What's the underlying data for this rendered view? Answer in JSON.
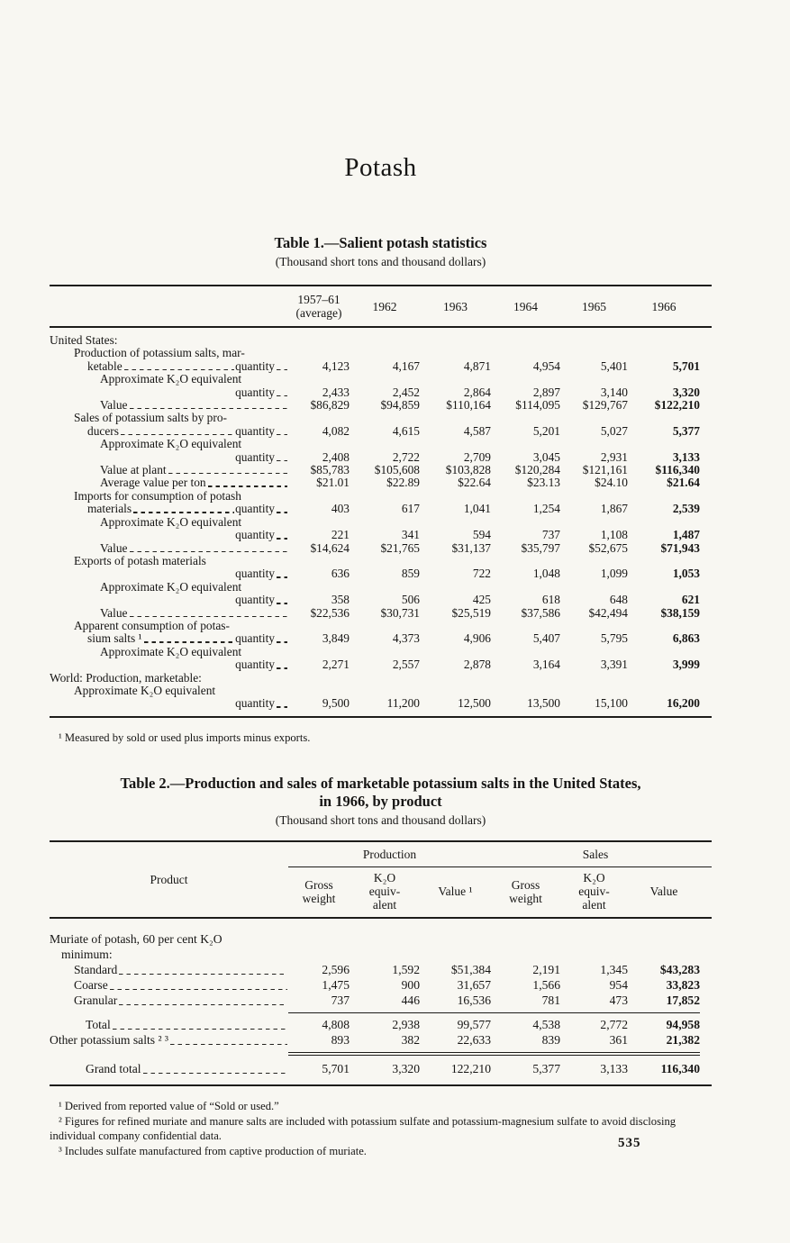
{
  "page": {
    "title": "Potash",
    "page_number": "535"
  },
  "table1": {
    "title": "Table 1.—Salient potash statistics",
    "subtitle": "(Thousand short tons and thousand dollars)",
    "col_headers": [
      "1957–61\n(average)",
      "1962",
      "1963",
      "1964",
      "1965",
      "1966"
    ],
    "rows": [
      {
        "indent": 0,
        "pre": "United States:"
      },
      {
        "indent": 1,
        "pre": "Production of potassium salts, mar-"
      },
      {
        "indent": 2,
        "pre": "ketable",
        "leader": true,
        "post": "quantity",
        "values": [
          "4,123",
          "4,167",
          "4,871",
          "4,954",
          "5,401",
          "5,701"
        ]
      },
      {
        "indent": 3,
        "pre": "Approximate K₂O equivalent"
      },
      {
        "indent": 0,
        "post": "quantity",
        "values": [
          "2,433",
          "2,452",
          "2,864",
          "2,897",
          "3,140",
          "3,320"
        ]
      },
      {
        "indent": 3,
        "pre": "Value",
        "leader": true,
        "values": [
          "$86,829",
          "$94,859",
          "$110,164",
          "$114,095",
          "$129,767",
          "$122,210"
        ]
      },
      {
        "indent": 1,
        "pre": "Sales of potassium salts by pro-"
      },
      {
        "indent": 2,
        "pre": "ducers",
        "leader": true,
        "post": "quantity",
        "values": [
          "4,082",
          "4,615",
          "4,587",
          "5,201",
          "5,027",
          "5,377"
        ]
      },
      {
        "indent": 3,
        "pre": "Approximate K₂O equivalent"
      },
      {
        "indent": 0,
        "post": "quantity",
        "values": [
          "2,408",
          "2,722",
          "2,709",
          "3,045",
          "2,931",
          "3,133"
        ]
      },
      {
        "indent": 3,
        "pre": "Value at plant",
        "leader": true,
        "values": [
          "$85,783",
          "$105,608",
          "$103,828",
          "$120,284",
          "$121,161",
          "$116,340"
        ]
      },
      {
        "indent": 3,
        "pre": "Average value per ton",
        "leader": true,
        "values": [
          "$21.01",
          "$22.89",
          "$22.64",
          "$23.13",
          "$24.10",
          "$21.64"
        ]
      },
      {
        "indent": 1,
        "pre": "Imports for consumption of potash"
      },
      {
        "indent": 2,
        "pre": "materials",
        "leader": true,
        "post": "quantity",
        "values": [
          "403",
          "617",
          "1,041",
          "1,254",
          "1,867",
          "2,539"
        ]
      },
      {
        "indent": 3,
        "pre": "Approximate K₂O equivalent"
      },
      {
        "indent": 0,
        "post": "quantity",
        "values": [
          "221",
          "341",
          "594",
          "737",
          "1,108",
          "1,487"
        ]
      },
      {
        "indent": 3,
        "pre": "Value",
        "leader": true,
        "values": [
          "$14,624",
          "$21,765",
          "$31,137",
          "$35,797",
          "$52,675",
          "$71,943"
        ]
      },
      {
        "indent": 1,
        "pre": "Exports of potash materials"
      },
      {
        "indent": 0,
        "post": "quantity",
        "values": [
          "636",
          "859",
          "722",
          "1,048",
          "1,099",
          "1,053"
        ]
      },
      {
        "indent": 3,
        "pre": "Approximate K₂O equivalent"
      },
      {
        "indent": 0,
        "post": "quantity",
        "values": [
          "358",
          "506",
          "425",
          "618",
          "648",
          "621"
        ]
      },
      {
        "indent": 3,
        "pre": "Value",
        "leader": true,
        "values": [
          "$22,536",
          "$30,731",
          "$25,519",
          "$37,586",
          "$42,494",
          "$38,159"
        ]
      },
      {
        "indent": 1,
        "pre": "Apparent consumption of potas-"
      },
      {
        "indent": 2,
        "pre": "sium salts ¹",
        "leader": true,
        "post": "quantity",
        "values": [
          "3,849",
          "4,373",
          "4,906",
          "5,407",
          "5,795",
          "6,863"
        ]
      },
      {
        "indent": 3,
        "pre": "Approximate K₂O equivalent"
      },
      {
        "indent": 0,
        "post": "quantity",
        "values": [
          "2,271",
          "2,557",
          "2,878",
          "3,164",
          "3,391",
          "3,999"
        ]
      },
      {
        "indent": 0,
        "pre": "World: Production, marketable:"
      },
      {
        "indent": 1,
        "pre": "Approximate K₂O equivalent"
      },
      {
        "indent": 0,
        "post": "quantity",
        "values": [
          "9,500",
          "11,200",
          "12,500",
          "13,500",
          "15,100",
          "16,200"
        ]
      }
    ],
    "footnote": "¹ Measured by sold or used plus imports minus exports."
  },
  "table2": {
    "title_line1": "Table 2.—Production and sales of marketable potassium salts in the United States,",
    "title_line2": "in 1966, by product",
    "subtitle": "(Thousand short tons and thousand dollars)",
    "product_header": "Product",
    "groups": [
      "Production",
      "Sales"
    ],
    "col_headers": [
      "Gross\nweight",
      "K₂O\nequiv-\nalent",
      "Value ¹",
      "Gross\nweight",
      "K₂O\nequiv-\nalent",
      "Value"
    ],
    "rows": [
      {
        "indent": 0,
        "pre": "Muriate of potash, 60 per cent K₂O"
      },
      {
        "indent": 1,
        "pre": "minimum:"
      },
      {
        "indent": 2,
        "pre": "Standard",
        "leader": true,
        "values": [
          "2,596",
          "1,592",
          "$51,384",
          "2,191",
          "1,345",
          "$43,283"
        ]
      },
      {
        "indent": 2,
        "pre": "Coarse",
        "leader": true,
        "values": [
          "1,475",
          "900",
          "31,657",
          "1,566",
          "954",
          "33,823"
        ]
      },
      {
        "indent": 2,
        "pre": "Granular",
        "leader": true,
        "values": [
          "737",
          "446",
          "16,536",
          "781",
          "473",
          "17,852"
        ]
      },
      {
        "indent": 3,
        "pre": "Total",
        "leader": true,
        "rule_above": "single",
        "values": [
          "4,808",
          "2,938",
          "99,577",
          "4,538",
          "2,772",
          "94,958"
        ]
      },
      {
        "indent": 0,
        "pre": "Other potassium salts ² ³",
        "leader": true,
        "values": [
          "893",
          "382",
          "22,633",
          "839",
          "361",
          "21,382"
        ]
      },
      {
        "indent": 3,
        "pre": "Grand total",
        "leader": true,
        "rule_above": "double",
        "values": [
          "5,701",
          "3,320",
          "122,210",
          "5,377",
          "3,133",
          "116,340"
        ]
      }
    ],
    "footnotes": [
      "¹ Derived from reported value of “Sold or used.”",
      "² Figures for refined muriate and manure salts are included with potassium sulfate and potassium-magnesium sulfate to avoid disclosing individual company confidential data.",
      "³ Includes sulfate manufactured from captive production of muriate."
    ]
  }
}
